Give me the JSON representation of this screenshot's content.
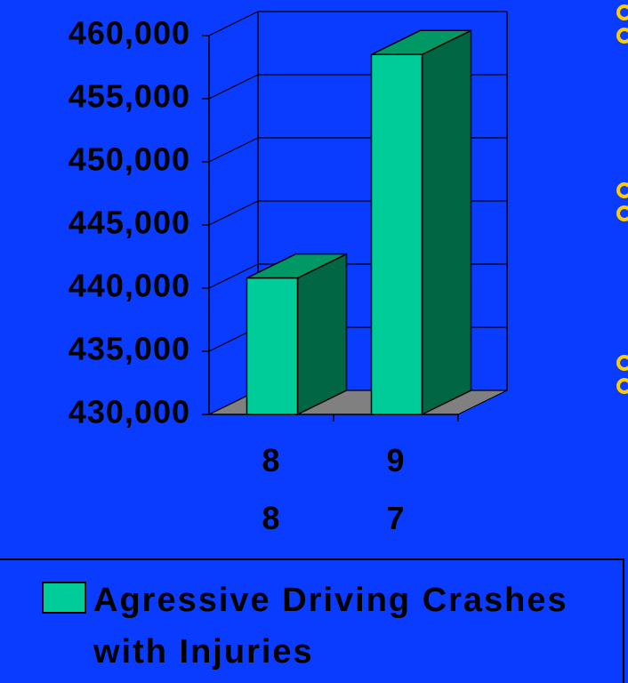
{
  "chart_data": {
    "type": "bar3d",
    "categories": [
      "88",
      "97"
    ],
    "series": [
      {
        "name": "Agressive Driving Crashes with Injuries",
        "color": "#00cc99",
        "values": [
          440800,
          458500
        ]
      }
    ],
    "ylim": [
      430000,
      460000
    ],
    "yticks": [
      {
        "value": 430000,
        "label": "430,000"
      },
      {
        "value": 435000,
        "label": "435,000"
      },
      {
        "value": 440000,
        "label": "440,000"
      },
      {
        "value": 445000,
        "label": "445,000"
      },
      {
        "value": 450000,
        "label": "450,000"
      },
      {
        "value": 455000,
        "label": "455,000"
      },
      {
        "value": 460000,
        "label": "460,000"
      }
    ],
    "grid": true
  }
}
